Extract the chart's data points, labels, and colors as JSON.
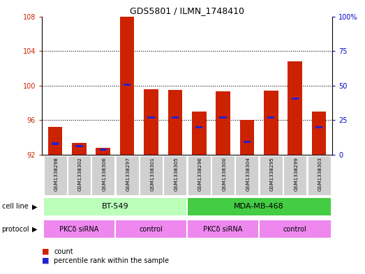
{
  "title": "GDS5801 / ILMN_1748410",
  "samples": [
    "GSM1338298",
    "GSM1338302",
    "GSM1338306",
    "GSM1338297",
    "GSM1338301",
    "GSM1338305",
    "GSM1338296",
    "GSM1338300",
    "GSM1338304",
    "GSM1338295",
    "GSM1338299",
    "GSM1338303"
  ],
  "bar_heights": [
    95.2,
    93.4,
    92.8,
    108.0,
    99.6,
    99.5,
    97.0,
    99.3,
    96.0,
    99.4,
    102.8,
    97.0
  ],
  "blue_markers": [
    93.3,
    93.0,
    92.6,
    100.1,
    96.3,
    96.3,
    95.2,
    96.3,
    93.5,
    96.3,
    98.5,
    95.2
  ],
  "ymin": 92,
  "ymax": 108,
  "yticks_left": [
    92,
    96,
    100,
    104,
    108
  ],
  "yticks_right": [
    0,
    25,
    50,
    75,
    100
  ],
  "bar_color": "#cc2200",
  "blue_color": "#2222cc",
  "bar_width": 0.6,
  "cell_line_colors": [
    "#bbffbb",
    "#44cc44"
  ],
  "protocol_color_pkc": "#ee88ee",
  "protocol_color_ctrl": "#dd88dd",
  "legend_count_color": "#cc2200",
  "legend_pct_color": "#2222cc",
  "tick_color_left": "#cc2200",
  "tick_color_right": "#0000cc"
}
